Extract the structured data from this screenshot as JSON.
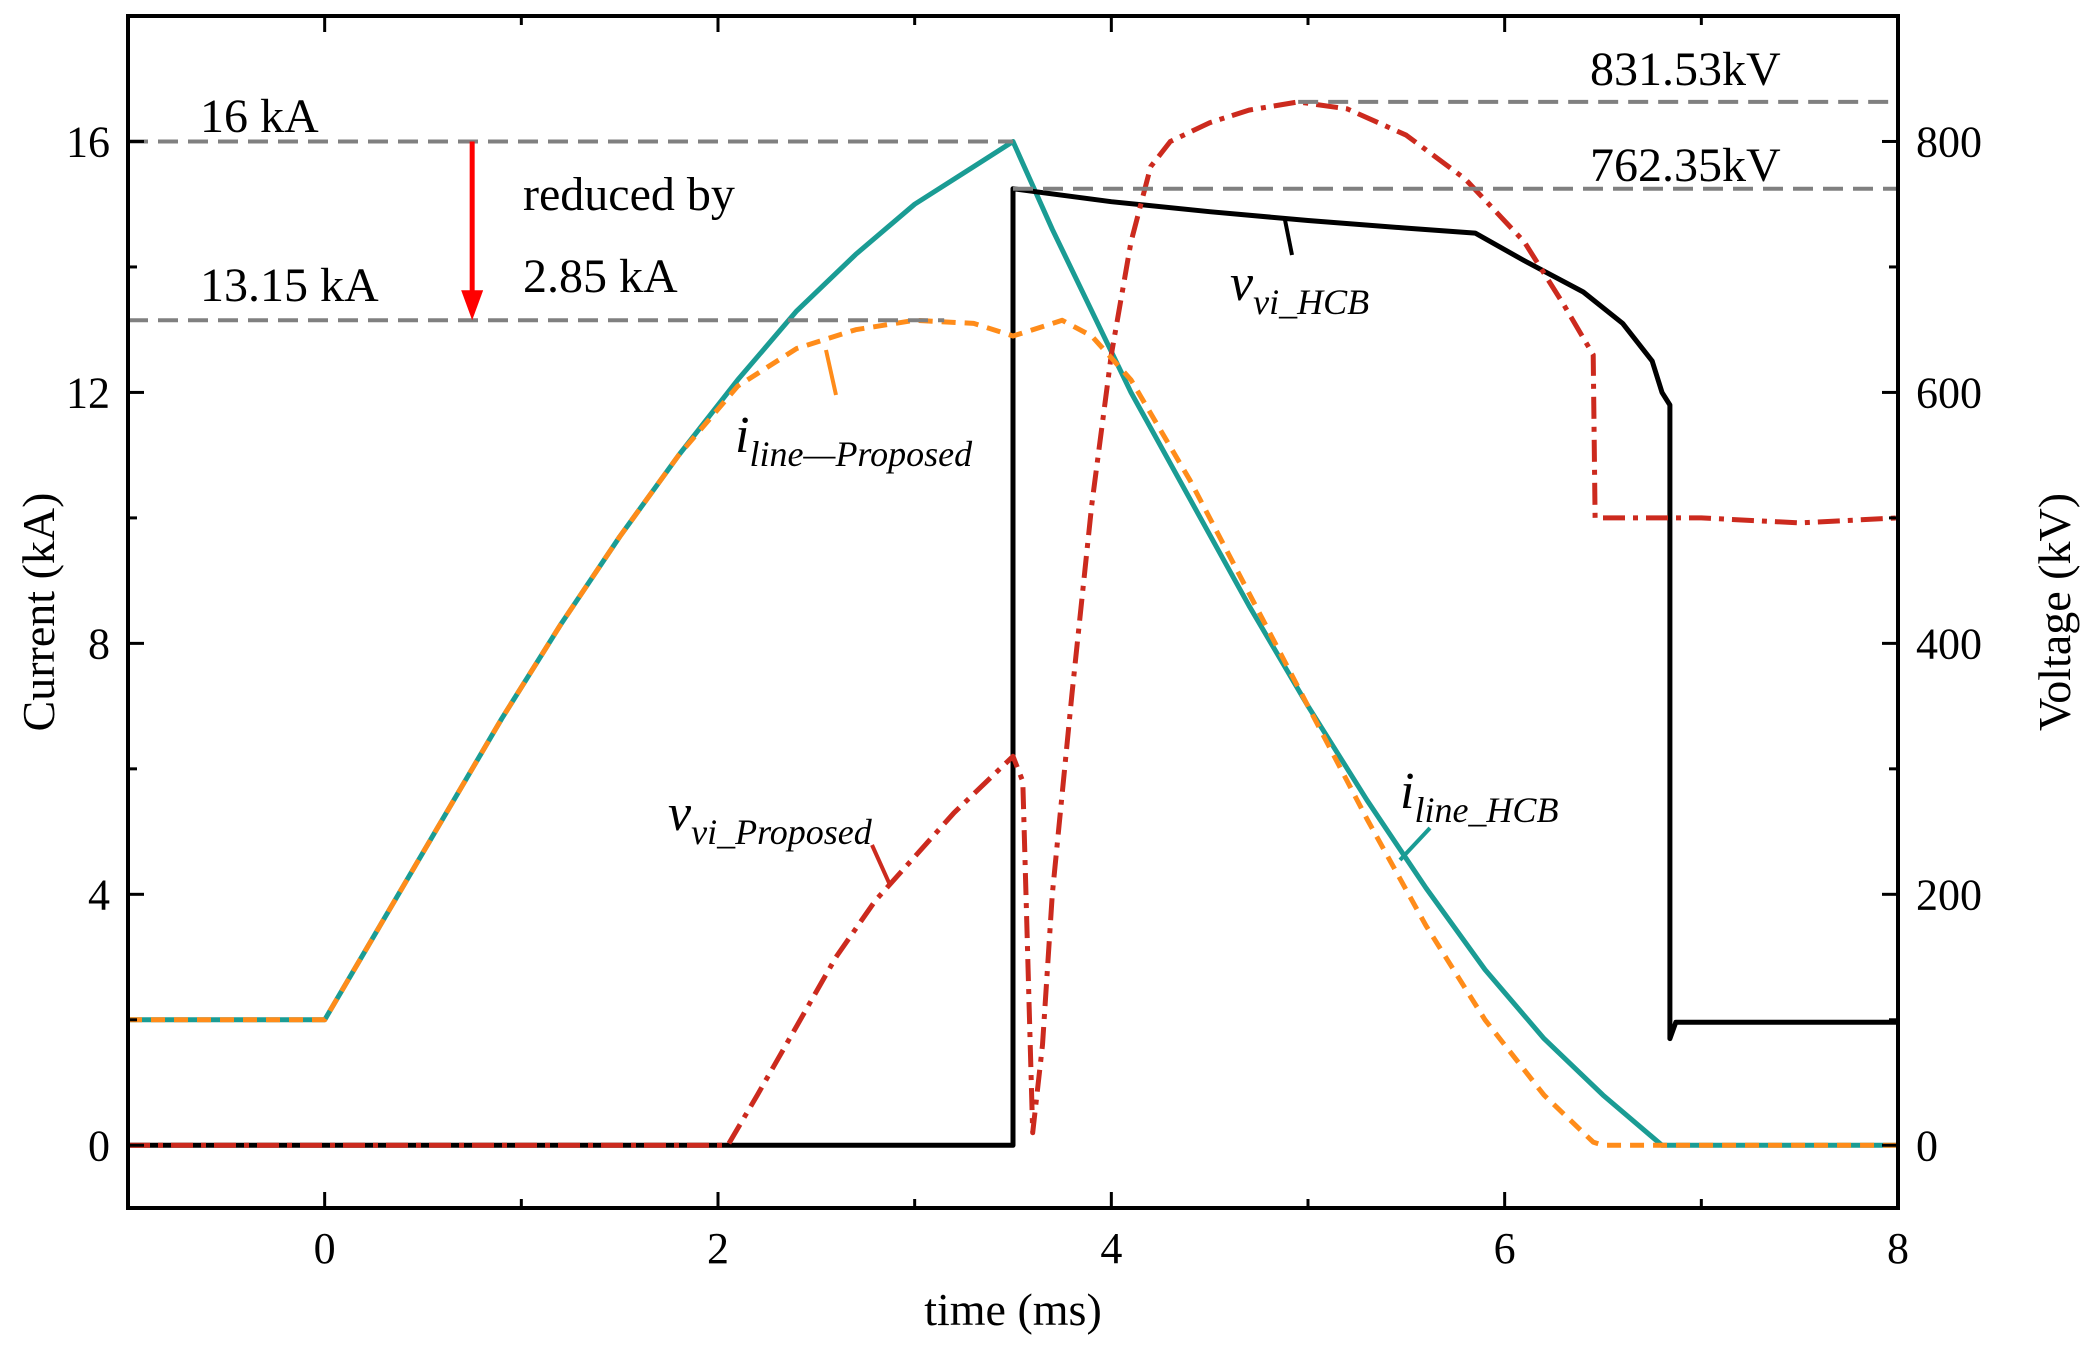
{
  "chart_data": {
    "type": "line",
    "xlabel": "time (ms)",
    "ylabel_left": "Current (kA)",
    "ylabel_right": "Voltage (kV)",
    "xlim": [
      -1,
      8
    ],
    "ylim_left": [
      -1,
      18
    ],
    "ylim_right": [
      -50,
      900
    ],
    "xticks": [
      0,
      2,
      4,
      6,
      8
    ],
    "yticks_left": [
      0,
      4,
      8,
      12,
      16
    ],
    "yticks_right": [
      0,
      200,
      400,
      600,
      800
    ],
    "series": [
      {
        "name": "i_line_HCB",
        "axis": "left",
        "color": "#1a9c94",
        "dash": "solid",
        "label_main": "i",
        "label_sub": "line_HCB",
        "x": [
          -1,
          0,
          0.3,
          0.6,
          0.9,
          1.2,
          1.5,
          1.8,
          2.1,
          2.4,
          2.7,
          3.0,
          3.3,
          3.5,
          3.7,
          3.9,
          4.1,
          4.4,
          4.7,
          5.0,
          5.3,
          5.6,
          5.9,
          6.2,
          6.5,
          6.8,
          7.0,
          8.0
        ],
        "y": [
          2.0,
          2.0,
          3.6,
          5.2,
          6.8,
          8.3,
          9.7,
          11.0,
          12.2,
          13.3,
          14.2,
          15.0,
          15.6,
          16.0,
          14.6,
          13.3,
          12.0,
          10.3,
          8.6,
          7.0,
          5.5,
          4.1,
          2.8,
          1.7,
          0.8,
          0.0,
          0.0,
          0.0
        ]
      },
      {
        "name": "i_line_Proposed",
        "axis": "left",
        "color": "#ff8c1a",
        "dash": "dashed",
        "label_main": "i",
        "label_sub": "line—Proposed",
        "x": [
          -1,
          0,
          0.3,
          0.6,
          0.9,
          1.2,
          1.5,
          1.8,
          2.1,
          2.4,
          2.7,
          3.0,
          3.3,
          3.5,
          3.75,
          3.9,
          4.1,
          4.4,
          4.7,
          5.0,
          5.3,
          5.6,
          5.9,
          6.2,
          6.45,
          6.5,
          8.0
        ],
        "y": [
          2.0,
          2.0,
          3.6,
          5.2,
          6.8,
          8.3,
          9.7,
          11.0,
          12.1,
          12.7,
          13.0,
          13.15,
          13.1,
          12.9,
          13.15,
          12.9,
          12.2,
          10.6,
          8.8,
          7.0,
          5.2,
          3.5,
          2.0,
          0.8,
          0.05,
          0.0,
          0.0
        ]
      },
      {
        "name": "v_vi_HCB",
        "axis": "right",
        "color": "#000000",
        "dash": "solid",
        "label_main": "v",
        "label_sub": "vi_HCB",
        "x": [
          -1,
          3.5,
          3.5,
          4.0,
          4.5,
          5.0,
          5.5,
          5.85,
          6.1,
          6.4,
          6.6,
          6.75,
          6.8,
          6.84,
          6.84,
          6.87,
          8.0
        ],
        "y": [
          0,
          0,
          762.35,
          752,
          744,
          737,
          731,
          727,
          705,
          680,
          655,
          625,
          600,
          590,
          85,
          98,
          98
        ]
      },
      {
        "name": "v_vi_Proposed",
        "axis": "right",
        "color": "#cc2a1e",
        "dash": "dashdot",
        "label_main": "v",
        "label_sub": "vi_Proposed",
        "x": [
          -1,
          2.05,
          2.2,
          2.4,
          2.6,
          2.8,
          3.0,
          3.2,
          3.4,
          3.5,
          3.55,
          3.6,
          3.65,
          3.7,
          3.8,
          3.9,
          4.0,
          4.1,
          4.2,
          4.3,
          4.5,
          4.7,
          4.95,
          5.2,
          5.5,
          5.8,
          6.1,
          6.3,
          6.45,
          6.46,
          6.5,
          7.0,
          7.5,
          8.0
        ],
        "y": [
          0,
          0,
          40,
          95,
          150,
          195,
          230,
          265,
          295,
          310,
          290,
          10,
          80,
          200,
          360,
          510,
          630,
          720,
          780,
          800,
          815,
          825,
          831.53,
          826,
          805,
          770,
          720,
          670,
          630,
          500,
          500,
          500,
          496,
          500
        ]
      }
    ],
    "annotations": [
      {
        "text": "16 kA",
        "value": 16
      },
      {
        "text": "13.15 kA",
        "value": 13.15
      },
      {
        "text": "reduced by",
        "line2": "2.85 kA",
        "delta": 2.85
      },
      {
        "text": "831.53kV",
        "value": 831.53
      },
      {
        "text": "762.35kV",
        "value": 762.35
      }
    ]
  }
}
